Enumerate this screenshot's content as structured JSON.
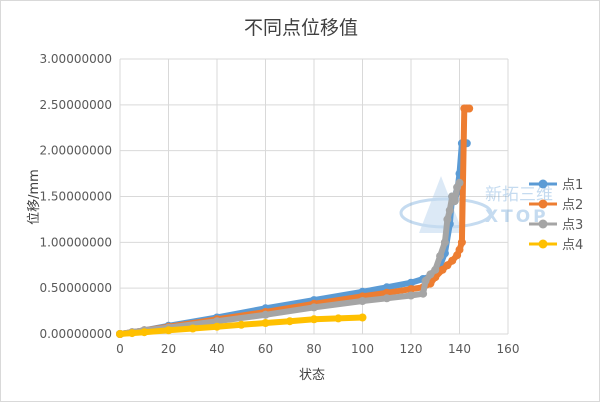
{
  "chart_data": {
    "type": "scatter",
    "title": "不同点位移值",
    "xlabel": "状态",
    "ylabel": "位移/mm",
    "xlim": [
      0,
      160
    ],
    "ylim": [
      0,
      3
    ],
    "x_ticks": [
      "0",
      "20",
      "40",
      "60",
      "80",
      "100",
      "120",
      "140",
      "160"
    ],
    "y_ticks": [
      "0.00000000",
      "0.50000000",
      "1.00000000",
      "1.50000000",
      "2.00000000",
      "2.50000000",
      "3.00000000"
    ],
    "grid": true,
    "legend_position": "right",
    "series": [
      {
        "name": "点1",
        "color": "#5b9bd5",
        "x": [
          0,
          5,
          10,
          20,
          40,
          60,
          80,
          100,
          110,
          120,
          125,
          128,
          130,
          132,
          134,
          136,
          137,
          138,
          139,
          140,
          141,
          142,
          143
        ],
        "y": [
          0.0,
          0.02,
          0.04,
          0.09,
          0.18,
          0.28,
          0.37,
          0.46,
          0.51,
          0.56,
          0.6,
          0.63,
          0.68,
          0.75,
          0.88,
          1.2,
          1.5,
          1.45,
          1.55,
          1.75,
          2.08,
          2.08,
          2.08
        ]
      },
      {
        "name": "点2",
        "color": "#ed7d31",
        "x": [
          0,
          5,
          10,
          20,
          40,
          60,
          80,
          100,
          110,
          120,
          125,
          128,
          130,
          133,
          135,
          137,
          139,
          140,
          141,
          142,
          143,
          144
        ],
        "y": [
          0.0,
          0.02,
          0.04,
          0.08,
          0.16,
          0.24,
          0.33,
          0.41,
          0.45,
          0.49,
          0.51,
          0.55,
          0.62,
          0.7,
          0.75,
          0.8,
          0.86,
          0.92,
          1.0,
          2.46,
          2.46,
          2.46
        ]
      },
      {
        "name": "点3",
        "color": "#a5a5a5",
        "x": [
          0,
          5,
          10,
          20,
          40,
          60,
          80,
          100,
          110,
          120,
          125,
          126,
          128,
          130,
          132,
          134,
          135,
          136,
          137,
          138,
          139,
          140
        ],
        "y": [
          0.0,
          0.02,
          0.04,
          0.07,
          0.14,
          0.21,
          0.29,
          0.36,
          0.39,
          0.42,
          0.44,
          0.58,
          0.65,
          0.7,
          0.85,
          1.0,
          1.25,
          1.35,
          1.5,
          1.45,
          1.6,
          1.65
        ]
      },
      {
        "name": "点4",
        "color": "#ffc000",
        "x": [
          0,
          5,
          10,
          20,
          30,
          40,
          50,
          60,
          70,
          80,
          90,
          100
        ],
        "y": [
          0.0,
          0.01,
          0.02,
          0.04,
          0.06,
          0.08,
          0.1,
          0.12,
          0.14,
          0.16,
          0.17,
          0.18
        ]
      }
    ]
  },
  "watermark": {
    "text_cn": "新拓三维",
    "text_en": "XTOP"
  }
}
